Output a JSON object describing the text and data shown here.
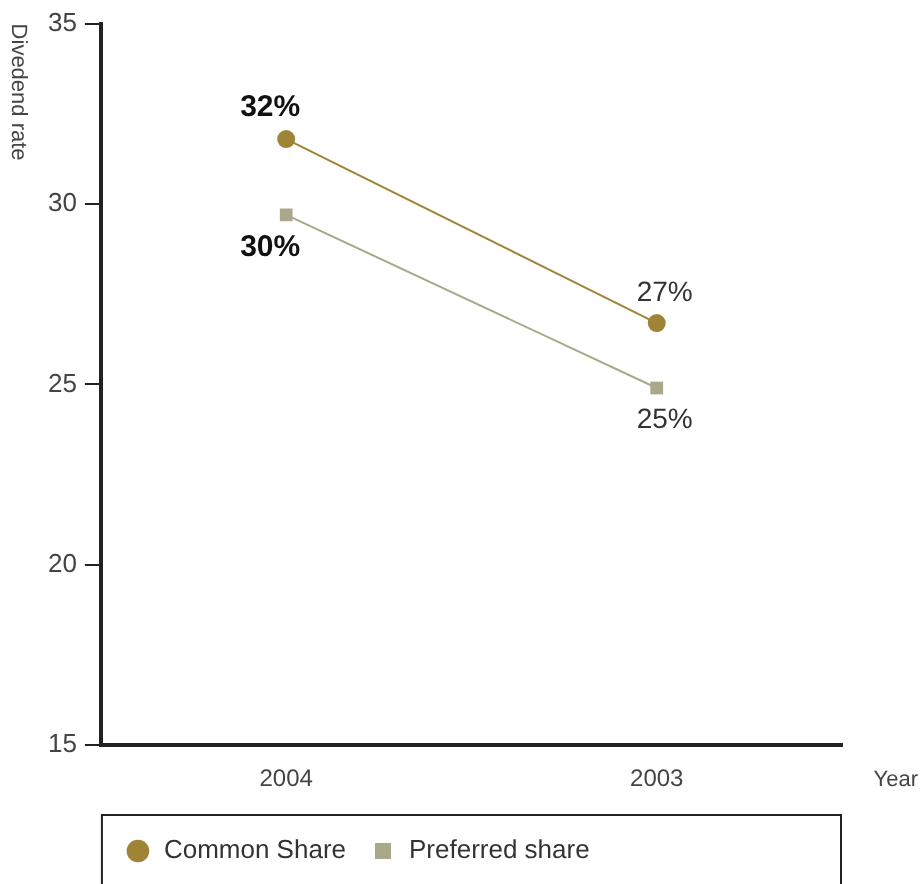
{
  "chart_data": {
    "type": "line",
    "xlabel": "Year",
    "ylabel": "Divedend rate",
    "categories": [
      "2004",
      "2003"
    ],
    "series": [
      {
        "name": "Common Share",
        "color": "#a08436",
        "values": [
          31.8,
          26.7
        ],
        "marker": "circle",
        "value_labels": [
          "32%",
          "27%"
        ]
      },
      {
        "name": "Preferred share",
        "color": "#a9a88a",
        "values": [
          29.7,
          24.9
        ],
        "marker": "square",
        "value_labels": [
          "30%",
          "25%"
        ]
      }
    ],
    "ylim": [
      15,
      35
    ],
    "yticks": [
      15,
      20,
      25,
      30,
      35
    ],
    "grid": false,
    "legend": "bottom left",
    "line_style": "solid"
  }
}
